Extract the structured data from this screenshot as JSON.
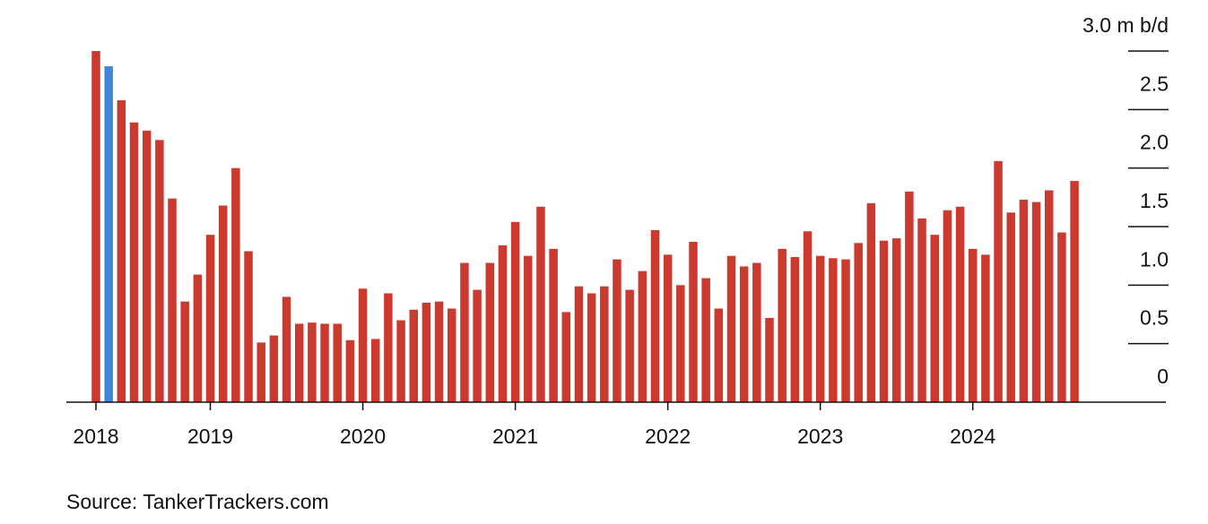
{
  "chart_data": {
    "type": "bar",
    "source": "Source: TankerTrackers.com",
    "categories": [
      "2018",
      null,
      null,
      null,
      null,
      null,
      null,
      null,
      null,
      "2019",
      null,
      null,
      null,
      null,
      null,
      null,
      null,
      null,
      null,
      null,
      null,
      "2020",
      null,
      null,
      null,
      null,
      null,
      null,
      null,
      null,
      null,
      null,
      null,
      "2021",
      null,
      null,
      null,
      null,
      null,
      null,
      null,
      null,
      null,
      null,
      null,
      "2022",
      null,
      null,
      null,
      null,
      null,
      null,
      null,
      null,
      null,
      null,
      null,
      "2023",
      null,
      null,
      null,
      null,
      null,
      null,
      null,
      null,
      null,
      null,
      null,
      "2024",
      null,
      null,
      null,
      null,
      null,
      null,
      null,
      null
    ],
    "values": [
      3.0,
      2.87,
      2.58,
      2.39,
      2.32,
      2.24,
      1.74,
      0.86,
      1.09,
      1.43,
      1.68,
      2.0,
      1.29,
      0.51,
      0.57,
      0.9,
      0.67,
      0.68,
      0.67,
      0.67,
      0.53,
      0.97,
      0.54,
      0.93,
      0.7,
      0.79,
      0.85,
      0.86,
      0.8,
      1.19,
      0.96,
      1.19,
      1.34,
      1.54,
      1.25,
      1.67,
      1.31,
      0.77,
      0.99,
      0.93,
      0.99,
      1.22,
      0.96,
      1.12,
      1.47,
      1.26,
      1.0,
      1.37,
      1.06,
      0.8,
      1.25,
      1.16,
      1.19,
      0.72,
      1.31,
      1.24,
      1.46,
      1.25,
      1.23,
      1.22,
      1.36,
      1.7,
      1.38,
      1.4,
      1.8,
      1.57,
      1.43,
      1.64,
      1.67,
      1.31,
      1.26,
      2.06,
      1.62,
      1.73,
      1.71,
      1.81,
      1.45,
      1.89
    ],
    "color": "#cc3a2f",
    "highlight": {
      "index": 1,
      "color": "#3f86d6"
    },
    "ylim": [
      0,
      3
    ],
    "yticks": [
      0,
      {
        "value": 0.5,
        "label": "0.5"
      },
      {
        "value": 1,
        "label": "1.0"
      },
      {
        "value": 1.5,
        "label": "1.5"
      },
      {
        "value": 2,
        "label": "2.0"
      },
      {
        "value": 2.5,
        "label": "2.5"
      },
      {
        "value": 3,
        "label": "3.0 m b/d"
      }
    ]
  }
}
